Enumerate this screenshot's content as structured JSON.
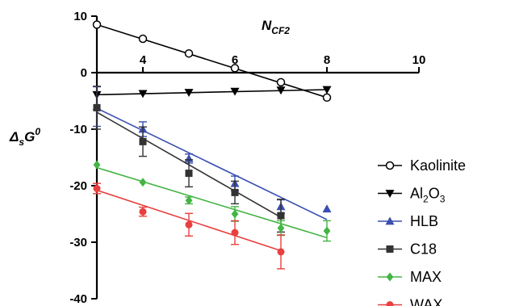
{
  "chart_data": {
    "type": "scatter",
    "title": "",
    "xlabel": "N",
    "xlabel_sub": "CF2",
    "ylabel": "Δ",
    "ylabel_sub": "s",
    "ylabel_main": "G",
    "ylabel_sup": "0",
    "xlim": [
      3,
      10
    ],
    "ylim": [
      -40,
      10
    ],
    "x_ticks": [
      4,
      6,
      8,
      10
    ],
    "y_ticks": [
      10,
      0,
      -10,
      -20,
      -30,
      -40
    ],
    "legend_position": "right",
    "grid": false,
    "series": [
      {
        "name": "Kaolinite",
        "color": "#000000",
        "marker": "open-circle",
        "x": [
          3,
          4,
          5,
          6,
          7,
          8
        ],
        "y": [
          8.5,
          6.0,
          3.4,
          0.8,
          -1.7,
          -4.4
        ],
        "err": [
          0,
          0,
          0,
          0,
          0,
          0
        ],
        "fit": [
          [
            3,
            8.5
          ],
          [
            8,
            -4.4
          ]
        ]
      },
      {
        "name": "Al2O3",
        "name_main": "Al",
        "name_sub1": "2",
        "name_mid": "O",
        "name_sub2": "3",
        "color": "#000000",
        "marker": "down-triangle",
        "x": [
          3,
          4,
          5,
          6,
          7,
          8
        ],
        "y": [
          -3.9,
          -3.7,
          -3.5,
          -3.3,
          -3.1,
          -3.0
        ],
        "err": [
          0,
          0,
          0,
          0,
          0,
          0
        ],
        "fit": [
          [
            3,
            -3.9
          ],
          [
            8,
            -3.0
          ]
        ]
      },
      {
        "name": "HLB",
        "color": "#3a4fb0",
        "marker": "triangle",
        "x": [
          3,
          4,
          5,
          6,
          7,
          8
        ],
        "y": [
          -6.0,
          -10.0,
          -15.2,
          -19.6,
          -23.7,
          -24.1
        ],
        "err": [
          3.5,
          1.3,
          0.8,
          1.3,
          1.2,
          0
        ],
        "fit": [
          [
            3,
            -6.3
          ],
          [
            8,
            -26.0
          ]
        ]
      },
      {
        "name": "C18",
        "color": "#333333",
        "marker": "square",
        "x": [
          3,
          4,
          5,
          6,
          7
        ],
        "y": [
          -6.2,
          -12.2,
          -17.8,
          -21.2,
          -25.3
        ],
        "err": [
          3.8,
          2.6,
          2.4,
          2.0,
          2.9
        ],
        "fit": [
          [
            3,
            -7.0
          ],
          [
            7,
            -25.6
          ]
        ]
      },
      {
        "name": "MAX",
        "color": "#44b545",
        "marker": "diamond",
        "x": [
          3,
          4,
          5,
          6,
          7,
          8
        ],
        "y": [
          -16.3,
          -19.4,
          -22.6,
          -25.0,
          -27.5,
          -28.0
        ],
        "err": [
          0,
          0,
          0.6,
          1.3,
          1.3,
          1.8
        ],
        "fit": [
          [
            3,
            -16.8
          ],
          [
            8,
            -29.2
          ]
        ]
      },
      {
        "name": "WAX",
        "color": "#e8403f",
        "marker": "circle",
        "x": [
          3,
          4,
          5,
          6,
          7
        ],
        "y": [
          -20.5,
          -24.6,
          -26.9,
          -28.3,
          -31.7
        ],
        "err": [
          0.9,
          0.8,
          2.0,
          2.1,
          3.0
        ],
        "fit": [
          [
            3,
            -20.8
          ],
          [
            7,
            -31.5
          ]
        ]
      }
    ]
  }
}
